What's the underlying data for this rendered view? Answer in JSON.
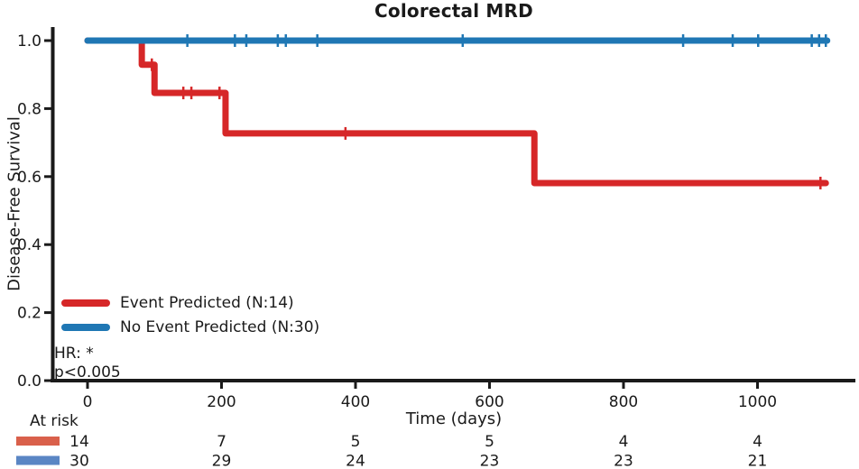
{
  "chart_data": {
    "type": "line",
    "subtype": "kaplan-meier-step",
    "title": "Colorectal MRD",
    "xlabel": "Time (days)",
    "ylabel": "Disease-Free Survival",
    "xticks": [
      0,
      200,
      400,
      600,
      800,
      1000
    ],
    "yticks": [
      0.0,
      0.2,
      0.4,
      0.6,
      0.8,
      1.0
    ],
    "xlim": [
      0,
      1104
    ],
    "ylim": [
      0.0,
      1.0
    ],
    "grid": false,
    "legend_position": "lower-left",
    "axis_color": "#1a1a1a",
    "text_color": "#1a1a1a",
    "series": [
      {
        "name": "Event Predicted (N:14)",
        "n": 14,
        "color": "#d62728",
        "step_points": [
          [
            0,
            1.0
          ],
          [
            81,
            1.0
          ],
          [
            81,
            0.929
          ],
          [
            100,
            0.929
          ],
          [
            100,
            0.846
          ],
          [
            206,
            0.846
          ],
          [
            206,
            0.727
          ],
          [
            667,
            0.727
          ],
          [
            667,
            0.581
          ],
          [
            1102,
            0.581
          ]
        ],
        "censor_marks": [
          [
            96,
            0.929
          ],
          [
            143,
            0.846
          ],
          [
            155,
            0.846
          ],
          [
            197,
            0.846
          ],
          [
            385,
            0.727
          ],
          [
            1094,
            0.581
          ]
        ]
      },
      {
        "name": "No Event Predicted (N:30)",
        "n": 30,
        "color": "#1f77b4",
        "step_points": [
          [
            0,
            1.0
          ],
          [
            1104,
            1.0
          ]
        ],
        "censor_marks": [
          [
            149,
            1.0
          ],
          [
            220,
            1.0
          ],
          [
            237,
            1.0
          ],
          [
            284,
            1.0
          ],
          [
            296,
            1.0
          ],
          [
            343,
            1.0
          ],
          [
            560,
            1.0
          ],
          [
            889,
            1.0
          ],
          [
            963,
            1.0
          ],
          [
            1001,
            1.0
          ],
          [
            1081,
            1.0
          ],
          [
            1092,
            1.0
          ],
          [
            1102,
            1.0
          ]
        ]
      }
    ],
    "annotations": [
      "HR: *",
      "p<0.005"
    ],
    "at_risk": {
      "label": "At risk",
      "times": [
        0,
        200,
        400,
        600,
        800,
        1000
      ],
      "rows": [
        {
          "series": "Event Predicted",
          "color": "#d9604b",
          "counts": [
            14,
            7,
            5,
            5,
            4,
            4
          ]
        },
        {
          "series": "No Event Predicted",
          "color": "#5a86c4",
          "counts": [
            30,
            29,
            24,
            23,
            23,
            21
          ]
        }
      ]
    }
  }
}
